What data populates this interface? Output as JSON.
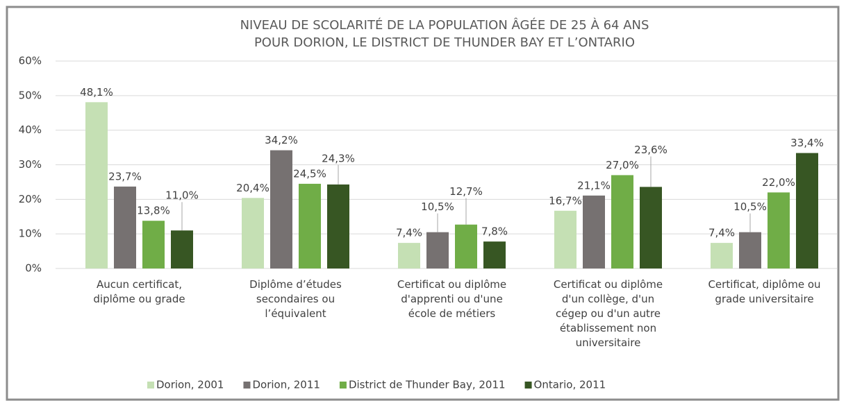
{
  "chart_data": {
    "type": "bar",
    "title": "NIVEAU DE SCOLARITÉ DE LA POPULATION ÂGÉE DE 25 À 64 ANS\nPOUR DORION, LE DISTRICT DE THUNDER BAY ET L’ONTARIO",
    "categories": [
      "Aucun certificat,\ndiplôme ou grade",
      "Diplôme d’études\nsecondaires ou\nl’équivalent",
      "Certificat ou diplôme\nd'apprenti ou d'une\nécole de métiers",
      "Certificat ou diplôme\nd'un collège, d'un\ncégep ou d'un autre\nétablissement non\nuniversitaire",
      "Certificat, diplôme ou\ngrade universitaire"
    ],
    "series": [
      {
        "name": "Dorion, 2001",
        "color": "#c5e0b4",
        "values": [
          48.1,
          20.4,
          7.4,
          16.7,
          7.4
        ],
        "value_labels": [
          "48,1%",
          "20,4%",
          "7,4%",
          "16,7%",
          "7,4%"
        ]
      },
      {
        "name": "Dorion, 2011",
        "color": "#767171",
        "values": [
          23.7,
          34.2,
          10.5,
          21.1,
          10.5
        ],
        "value_labels": [
          "23,7%",
          "34,2%",
          "10,5%",
          "21,1%",
          "10,5%"
        ]
      },
      {
        "name": "District de Thunder Bay, 2011",
        "color": "#70ad47",
        "values": [
          13.8,
          24.5,
          12.7,
          27.0,
          22.0
        ],
        "value_labels": [
          "13,8%",
          "24,5%",
          "12,7%",
          "27,0%",
          "22,0%"
        ]
      },
      {
        "name": "Ontario, 2011",
        "color": "#375623",
        "values": [
          11.0,
          24.3,
          7.8,
          23.6,
          33.4
        ],
        "value_labels": [
          "11,0%",
          "24,3%",
          "7,8%",
          "23,6%",
          "33,4%"
        ]
      }
    ],
    "ylim": [
      0,
      60
    ],
    "yticks": [
      {
        "value": 0,
        "label": "0%"
      },
      {
        "value": 10,
        "label": "10%"
      },
      {
        "value": 20,
        "label": "20%"
      },
      {
        "value": 30,
        "label": "30%"
      },
      {
        "value": 40,
        "label": "40%"
      },
      {
        "value": 50,
        "label": "50%"
      },
      {
        "value": 60,
        "label": "60%"
      }
    ],
    "legend": "bottom"
  }
}
